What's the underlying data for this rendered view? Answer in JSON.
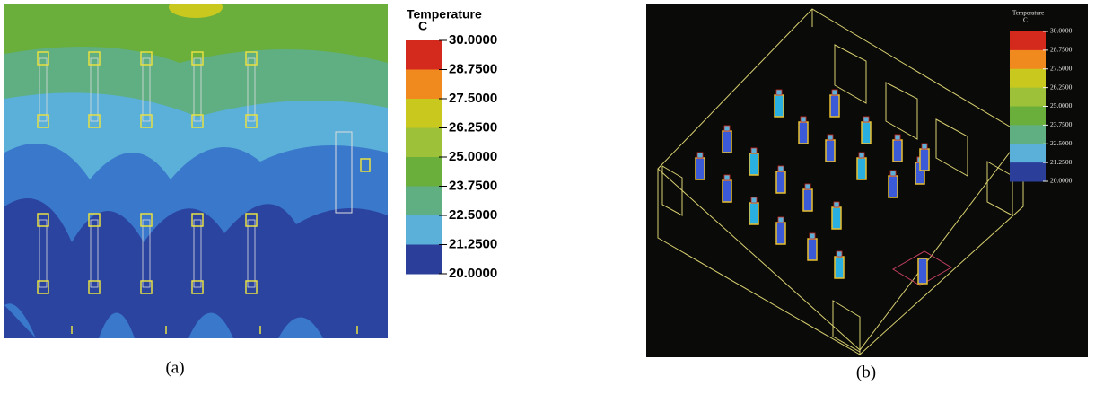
{
  "panels": [
    {
      "caption": "(a)",
      "legend": {
        "title": "Temperature",
        "unit": "C",
        "labels": [
          "30.0000",
          "28.7500",
          "27.5000",
          "26.2500",
          "25.0000",
          "23.7500",
          "22.5000",
          "21.2500",
          "20.0000"
        ]
      }
    },
    {
      "caption": "(b)",
      "legend": {
        "title": "Temperature",
        "unit": "C",
        "labels": [
          "30.0000",
          "28.7500",
          "27.5000",
          "26.2500",
          "25.0000",
          "23.7500",
          "22.5000",
          "21.2500",
          "20.0000"
        ]
      }
    }
  ]
}
